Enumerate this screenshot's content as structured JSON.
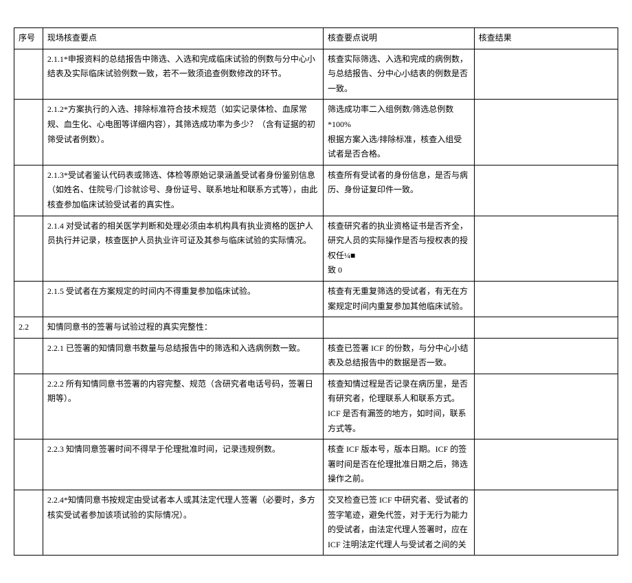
{
  "headers": {
    "col1": "序号",
    "col2": "现场核查要点",
    "col3": "核查要点说明",
    "col4": "核查结果"
  },
  "rows": [
    {
      "num": "",
      "main": "2.1.1*申报资料的总结报告中筛选、入选和完成临床试验的例数与分中心小结表及实际临床试验例数一致，若不一致须追查例数修改的环节。",
      "desc": "核查实际筛选、入选和完成的病例数，与总结报告、分中心小结表的例数是否一致。",
      "result": ""
    },
    {
      "num": "",
      "main": "2.1.2*方案执行的入选、排除标准符合技术规范（如实记录体检、血尿常规、血生化、心电图等详细内容），其筛选成功率为多少？（含有证据的初筛受试者例数）。",
      "desc": "筛选成功率二入组例数/筛选总例数*100%\n根据方案入选/排除标准，核查入组受试者是否合格。",
      "result": ""
    },
    {
      "num": "",
      "main": "2.1.3*受试者鉴认代码表或筛选、体检等原始记录涵盖受试者身份鉴别信息（如姓名、住院号/门诊就诊号、身份证号、联系地址和联系方式等），由此核查参加临床试验受试者的真实性。",
      "desc": "核查所有受试者的身份信息，是否与病历、身份证复印件一致。",
      "result": ""
    },
    {
      "num": "",
      "main": "2.1.4 对受试者的相关医学判断和处理必须由本机构具有执业资格的医护人员执行并记录，核查医护人员执业许可证及其参与临床试验的实际情况。",
      "desc": "核查研究者的执业资格证书是否齐全，研究人员的实际操作是否与授权表的授权任¼■\n致 0",
      "result": ""
    },
    {
      "num": "",
      "main": "2.1.5 受试者在方案规定的时间内不得重复参加临床试验。",
      "desc": "核查有无重复筛选的受试者，有无在方案规定时间内重复参加其他临床试验。",
      "result": ""
    },
    {
      "num": "2.2",
      "main": "知情同意书的签署与试验过程的真实完整性：",
      "desc": "",
      "result": ""
    },
    {
      "num": "",
      "main": "2.2.1 已签署的知情同意书数量与总结报告中的筛选和入选病例数一致。",
      "desc": "核查已签署 ICF 的份数，与分中心小结表及总结报告中的数据是否一致。",
      "result": ""
    },
    {
      "num": "",
      "main": "2.2.2 所有知情同意书签署的内容完整、规范（含研究者电话号码，签署日期等）。",
      "desc": "核查知情过程是否记录在病历里，是否有研究者，伦理联系人和联系方式。ICF 是否有漏签的地方，如时间，联系方式等。",
      "result": ""
    },
    {
      "num": "",
      "main": "2.2.3 知情同意签署时间不得早于伦理批准时间，记录违规例数。",
      "desc": "核查 ICF 版本号，版本日期。ICF 的签署时间是否在伦理批准日期之后，筛选操作之前。",
      "result": ""
    },
    {
      "num": "",
      "main": "2.2.4*知情同意书按规定由受试者本人或其法定代理人签署（必要时，多方核实受试者参加该项试验的实际情况）。",
      "desc": "交叉检查已签 ICF 中研究者、受试者的签字笔迹，避免代签，对于无行为能力的受试者，由法定代理人签署时，应在 ICF 注明法定代理人与受试者之间的关",
      "result": ""
    }
  ]
}
